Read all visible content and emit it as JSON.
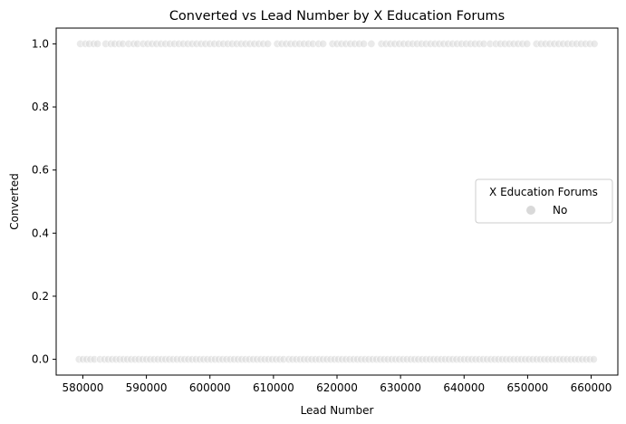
{
  "chart_data": {
    "type": "scatter",
    "title": "Converted vs Lead Number by X Education Forums",
    "xlabel": "Lead Number",
    "ylabel": "Converted",
    "xlim": [
      575800,
      664200
    ],
    "ylim": [
      -0.05,
      1.05
    ],
    "xticks": [
      580000,
      590000,
      600000,
      610000,
      620000,
      630000,
      640000,
      650000,
      660000
    ],
    "xtick_labels": [
      "580000",
      "590000",
      "600000",
      "610000",
      "620000",
      "630000",
      "640000",
      "650000",
      "660000"
    ],
    "yticks": [
      0.0,
      0.2,
      0.4,
      0.6,
      0.8,
      1.0
    ],
    "ytick_labels": [
      "0.0",
      "0.2",
      "0.4",
      "0.6",
      "0.8",
      "1.0"
    ],
    "grid": false,
    "legend": {
      "title": "X Education Forums",
      "placement": "center-right",
      "entries": [
        "No"
      ]
    },
    "series": [
      {
        "name": "No",
        "color": "#d9d9d9",
        "points_y1": [
          579600,
          580400,
          581000,
          581700,
          582300,
          583600,
          584400,
          585000,
          585700,
          586300,
          587200,
          588000,
          588600,
          589500,
          590200,
          590900,
          591600,
          592300,
          593000,
          593700,
          594400,
          595100,
          595800,
          596500,
          597200,
          597900,
          598600,
          599300,
          600000,
          600700,
          601400,
          602100,
          602800,
          603500,
          604200,
          604900,
          605600,
          606300,
          607000,
          607700,
          608400,
          609100,
          610600,
          611300,
          612000,
          612700,
          613400,
          614100,
          614800,
          615500,
          616200,
          617100,
          617800,
          619300,
          620000,
          620700,
          621400,
          622100,
          622800,
          623500,
          624200,
          625400,
          627000,
          627700,
          628400,
          629100,
          629800,
          630500,
          631200,
          631900,
          632600,
          633300,
          634000,
          634700,
          635400,
          636100,
          636800,
          637500,
          638200,
          638900,
          639600,
          640300,
          641000,
          641700,
          642400,
          643100,
          644100,
          645000,
          645700,
          646400,
          647100,
          647800,
          648500,
          649200,
          649900,
          651400,
          652100,
          652800,
          653500,
          654200,
          654900,
          655600,
          656300,
          657000,
          657700,
          658400,
          659100,
          659800,
          660500
        ],
        "points_y0": [
          579400,
          580000,
          580600,
          581200,
          581800,
          582700,
          583400,
          584000,
          584600,
          585200,
          585800,
          586400,
          587000,
          587600,
          588200,
          588800,
          589400,
          590000,
          590600,
          591200,
          591800,
          592400,
          593000,
          593600,
          594200,
          594800,
          595400,
          596000,
          596600,
          597200,
          597800,
          598400,
          599000,
          599600,
          600200,
          600800,
          601400,
          602000,
          602600,
          603200,
          603800,
          604400,
          605000,
          605600,
          606200,
          606800,
          607400,
          608000,
          608600,
          609200,
          609800,
          610400,
          611000,
          611600,
          612400,
          613000,
          613600,
          614200,
          614800,
          615400,
          616000,
          616600,
          617200,
          617800,
          618400,
          619000,
          619600,
          620200,
          620800,
          621400,
          622000,
          622600,
          623200,
          623800,
          624400,
          625000,
          625600,
          626200,
          626800,
          627400,
          628000,
          628600,
          629200,
          629800,
          630400,
          631000,
          631600,
          632200,
          632800,
          633400,
          634000,
          634600,
          635200,
          635800,
          636400,
          637000,
          637600,
          638200,
          638800,
          639400,
          640000,
          640600,
          641200,
          641800,
          642400,
          643000,
          643600,
          644200,
          644800,
          645400,
          646000,
          646600,
          647200,
          647800,
          648400,
          649000,
          649600,
          650200,
          650800,
          651400,
          652000,
          652600,
          653200,
          653800,
          654400,
          655000,
          655600,
          656200,
          656800,
          657400,
          658000,
          658600,
          659200,
          659800,
          660400
        ]
      }
    ]
  }
}
